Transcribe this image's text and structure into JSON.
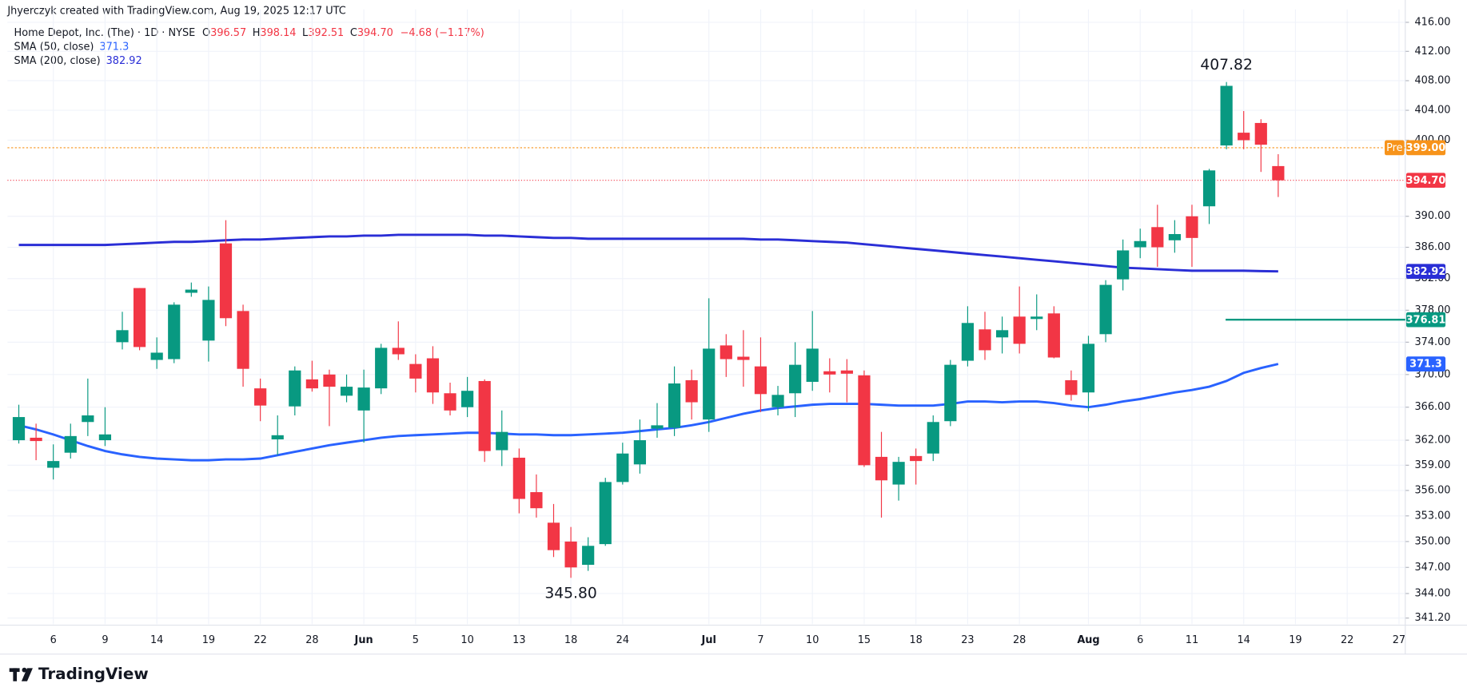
{
  "chart_data": {
    "type": "candlestick",
    "credit": "Jhyerczyk created with TradingView.com, Aug 19, 2025 12:17 UTC",
    "symbol": "Home Depot, Inc. (The) · 1D · NYSE",
    "legend_ohlc": [
      {
        "key": "O",
        "value": "396.57"
      },
      {
        "key": "H",
        "value": "398.14"
      },
      {
        "key": "L",
        "value": "392.51"
      },
      {
        "key": "C",
        "value": "394.70"
      }
    ],
    "change": "−4.68 (−1.17%)",
    "footer": "TradingView",
    "log_scale": true,
    "grid": true,
    "up_color": "#089981",
    "down_color": "#f23645",
    "ylim": [
      340.5,
      417.8
    ],
    "yticks": [
      {
        "value": 416,
        "label": "416.00"
      },
      {
        "value": 412,
        "label": "412.00"
      },
      {
        "value": 408,
        "label": "408.00"
      },
      {
        "value": 404,
        "label": "404.00"
      },
      {
        "value": 400,
        "label": "400.00"
      },
      {
        "value": 390,
        "label": "390.00"
      },
      {
        "value": 386,
        "label": "386.00"
      },
      {
        "value": 382,
        "label": "382.00"
      },
      {
        "value": 378,
        "label": "378.00"
      },
      {
        "value": 374,
        "label": "374.00"
      },
      {
        "value": 370,
        "label": "370.00"
      },
      {
        "value": 366,
        "label": "366.00"
      },
      {
        "value": 362,
        "label": "362.00"
      },
      {
        "value": 359,
        "label": "359.00"
      },
      {
        "value": 356,
        "label": "356.00"
      },
      {
        "value": 353,
        "label": "353.00"
      },
      {
        "value": 350,
        "label": "350.00"
      },
      {
        "value": 347,
        "label": "347.00"
      },
      {
        "value": 344,
        "label": "344.00"
      },
      {
        "value": 341.2,
        "label": "341.20"
      }
    ],
    "categories": [
      null,
      null,
      "6",
      null,
      null,
      "9",
      null,
      null,
      "14",
      null,
      null,
      "19",
      null,
      null,
      "22",
      null,
      null,
      "28",
      null,
      null,
      "Jun",
      null,
      null,
      "5",
      null,
      null,
      "10",
      null,
      null,
      "13",
      null,
      null,
      "18",
      null,
      null,
      "24",
      null,
      null,
      null,
      null,
      "Jul",
      null,
      null,
      "7",
      null,
      null,
      "10",
      null,
      null,
      "15",
      null,
      null,
      "18",
      null,
      null,
      "23",
      null,
      null,
      "28",
      null,
      null,
      null,
      "Aug",
      null,
      null,
      "6",
      null,
      null,
      "11",
      null,
      null,
      "14",
      null,
      null,
      "19",
      null,
      null,
      "22",
      null,
      null,
      "27"
    ],
    "open": [
      362.0,
      362.3,
      358.7,
      360.5,
      364.2,
      362.0,
      374.0,
      380.8,
      371.8,
      371.9,
      380.2,
      374.2,
      386.5,
      377.9,
      368.3,
      362.1,
      366.1,
      369.4,
      370.0,
      367.4,
      365.6,
      368.3,
      373.3,
      371.3,
      372.0,
      367.7,
      366.0,
      369.2,
      360.8,
      359.9,
      355.8,
      352.2,
      350.0,
      347.3,
      349.7,
      357.0,
      359.1,
      363.4,
      363.5,
      369.3,
      364.5,
      373.6,
      372.2,
      371.0,
      366.0,
      367.7,
      369.1,
      370.4,
      370.5,
      369.9,
      360.0,
      356.7,
      360.1,
      360.4,
      364.3,
      371.7,
      375.6,
      374.6,
      377.2,
      376.9,
      377.6,
      369.3,
      367.8,
      375.0,
      381.9,
      386.0,
      388.6,
      386.9,
      390.0,
      391.3,
      399.3,
      401.0,
      402.3,
      396.57,
      null,
      null,
      null,
      null,
      null,
      null,
      null
    ],
    "high": [
      366.3,
      364.0,
      361.5,
      364.0,
      369.5,
      366.0,
      377.8,
      380.8,
      374.6,
      379.0,
      381.5,
      381.0,
      389.5,
      378.7,
      369.5,
      365.0,
      371.0,
      371.7,
      370.6,
      370.0,
      370.6,
      373.8,
      376.6,
      372.5,
      373.5,
      369.0,
      369.7,
      369.4,
      365.6,
      361.0,
      357.9,
      354.4,
      351.7,
      350.5,
      357.5,
      361.7,
      364.5,
      366.5,
      371.0,
      370.6,
      379.5,
      375.0,
      375.5,
      374.6,
      368.6,
      374.0,
      377.9,
      372.0,
      371.9,
      370.5,
      363.0,
      360.0,
      361.0,
      365.0,
      371.8,
      378.5,
      377.8,
      377.2,
      381.0,
      380.0,
      378.5,
      370.5,
      374.8,
      381.8,
      387.0,
      388.4,
      391.5,
      389.5,
      391.5,
      396.2,
      407.82,
      403.9,
      402.8,
      398.14,
      null,
      null,
      null,
      null,
      null,
      null,
      null
    ],
    "low": [
      361.6,
      359.6,
      357.3,
      359.8,
      362.5,
      361.3,
      373.1,
      373.0,
      370.7,
      371.4,
      379.7,
      371.6,
      376.0,
      368.5,
      364.3,
      360.2,
      365.0,
      367.9,
      363.7,
      366.6,
      361.7,
      367.6,
      371.8,
      367.8,
      366.4,
      365.0,
      364.8,
      359.4,
      358.9,
      353.3,
      352.8,
      348.2,
      345.8,
      346.6,
      349.5,
      356.7,
      358.0,
      362.3,
      362.5,
      364.5,
      363.0,
      369.7,
      368.5,
      365.4,
      365.0,
      364.8,
      368.0,
      367.8,
      366.6,
      358.8,
      352.8,
      354.8,
      356.7,
      359.5,
      363.7,
      371.0,
      371.8,
      372.6,
      372.6,
      375.5,
      372.0,
      366.8,
      365.5,
      374.0,
      380.5,
      384.6,
      383.5,
      385.3,
      383.5,
      389.0,
      398.8,
      398.8,
      395.8,
      392.51,
      null,
      null,
      null,
      null,
      null,
      null,
      null
    ],
    "close": [
      364.8,
      361.9,
      359.5,
      362.5,
      365.0,
      362.7,
      375.5,
      373.4,
      372.7,
      378.7,
      380.6,
      379.3,
      377.0,
      370.7,
      366.2,
      362.6,
      370.5,
      368.3,
      368.5,
      368.5,
      368.4,
      373.3,
      372.5,
      369.5,
      367.8,
      365.6,
      368.0,
      360.7,
      363.0,
      355.0,
      353.9,
      349.0,
      347.0,
      349.5,
      357.0,
      360.4,
      362.0,
      363.8,
      368.9,
      366.6,
      373.2,
      371.9,
      371.8,
      367.6,
      367.5,
      371.2,
      373.2,
      370.0,
      370.1,
      359.0,
      357.2,
      359.4,
      359.5,
      364.2,
      371.2,
      376.4,
      373.0,
      375.5,
      373.8,
      377.2,
      372.1,
      367.5,
      373.8,
      381.2,
      385.6,
      386.8,
      386.0,
      387.7,
      387.2,
      396.0,
      407.3,
      400.0,
      399.4,
      394.7,
      null,
      null,
      null,
      null,
      null,
      null,
      null
    ],
    "series": [
      {
        "name": "SMA (50, close)",
        "color": "#2962ff",
        "value_label": "371.3",
        "values": [
          363.8,
          363.3,
          362.7,
          362.0,
          361.3,
          360.7,
          360.3,
          360.0,
          359.8,
          359.7,
          359.6,
          359.6,
          359.7,
          359.7,
          359.8,
          360.2,
          360.6,
          361.0,
          361.4,
          361.7,
          362.0,
          362.3,
          362.5,
          362.6,
          362.7,
          362.8,
          362.9,
          362.9,
          362.8,
          362.7,
          362.7,
          362.6,
          362.6,
          362.7,
          362.8,
          362.9,
          363.1,
          363.3,
          363.5,
          363.8,
          364.2,
          364.7,
          365.2,
          365.6,
          365.9,
          366.1,
          366.3,
          366.4,
          366.4,
          366.4,
          366.3,
          366.2,
          366.2,
          366.2,
          366.4,
          366.7,
          366.7,
          366.6,
          366.7,
          366.7,
          366.5,
          366.2,
          366.0,
          366.3,
          366.7,
          367.0,
          367.4,
          367.8,
          368.1,
          368.5,
          369.2,
          370.2,
          370.8,
          371.3,
          null,
          null,
          null,
          null,
          null,
          null,
          null
        ]
      },
      {
        "name": "SMA (200, close)",
        "color": "#2a2ed6",
        "value_label": "382.92",
        "values": [
          386.3,
          386.3,
          386.3,
          386.3,
          386.3,
          386.3,
          386.4,
          386.5,
          386.6,
          386.7,
          386.7,
          386.8,
          386.9,
          387.0,
          387.0,
          387.1,
          387.2,
          387.3,
          387.4,
          387.4,
          387.5,
          387.5,
          387.6,
          387.6,
          387.6,
          387.6,
          387.6,
          387.5,
          387.5,
          387.4,
          387.3,
          387.2,
          387.2,
          387.1,
          387.1,
          387.1,
          387.1,
          387.1,
          387.1,
          387.1,
          387.1,
          387.1,
          387.1,
          387.0,
          387.0,
          386.9,
          386.8,
          386.7,
          386.6,
          386.4,
          386.2,
          386.0,
          385.8,
          385.6,
          385.4,
          385.2,
          385.0,
          384.8,
          384.6,
          384.4,
          384.2,
          384.0,
          383.8,
          383.6,
          383.4,
          383.3,
          383.2,
          383.1,
          383.0,
          383.0,
          383.0,
          383.0,
          382.95,
          382.92,
          null,
          null,
          null,
          null,
          null,
          null,
          null
        ]
      }
    ],
    "price_lines": [
      {
        "name": "Pre",
        "value": 399.0,
        "value_label": "399.00",
        "color": "#f7931a",
        "style": "dashed"
      },
      {
        "value": 394.7,
        "value_label": "394.70",
        "color": "#f23645",
        "style": "dotted"
      },
      {
        "value": 376.81,
        "value_label": "376.81",
        "color": "#089981",
        "style": "solid"
      }
    ],
    "annotations": [
      {
        "text": "407.82",
        "value": 407.82
      },
      {
        "text": "345.80",
        "value": 345.8
      }
    ]
  }
}
